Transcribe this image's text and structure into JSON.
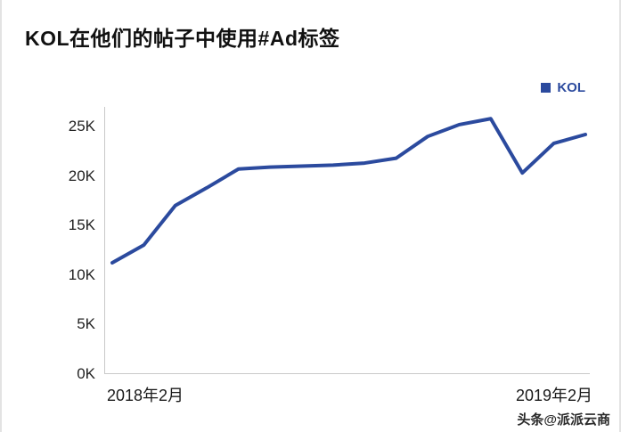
{
  "page": {
    "watermark": "头条@派派云商"
  },
  "chart_data": {
    "type": "line",
    "title": "KOL在他们的帖子中使用#Ad标签",
    "legend": [
      "KOL"
    ],
    "legend_position": "top-right",
    "line_color": "#2b4a9e",
    "grid": false,
    "x_tick_labels": [
      "2018年2月",
      "2019年2月"
    ],
    "x_range": [
      "2018年2月",
      "2019年2月"
    ],
    "y_ticks": [
      "25K",
      "20K",
      "15K",
      "10K",
      "5K",
      "0K"
    ],
    "ylim_k": [
      0,
      27
    ],
    "values_k": [
      11.2,
      13.0,
      17.0,
      18.8,
      20.7,
      20.9,
      21.0,
      21.1,
      21.3,
      21.8,
      24.0,
      25.2,
      25.8,
      20.3,
      23.3,
      24.2
    ]
  }
}
